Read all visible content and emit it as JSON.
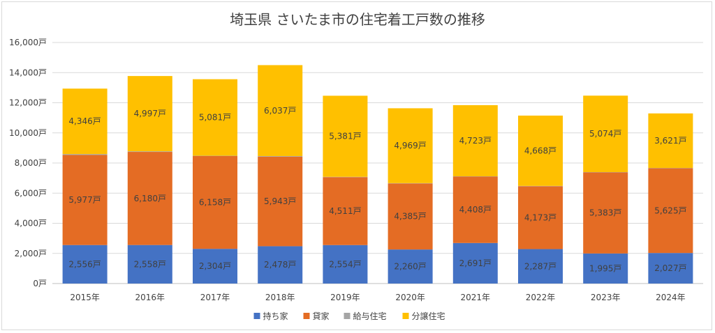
{
  "chart_data": {
    "type": "bar",
    "stacked": true,
    "title": "埼玉県 さいたま市の住宅着工戸数の推移",
    "unit_suffix": "戸",
    "categories": [
      "2015年",
      "2016年",
      "2017年",
      "2018年",
      "2019年",
      "2020年",
      "2021年",
      "2022年",
      "2023年",
      "2024年"
    ],
    "ylim": [
      0,
      16000
    ],
    "yticks": [
      "0戸",
      "2,000戸",
      "4,000戸",
      "6,000戸",
      "8,000戸",
      "10,000戸",
      "12,000戸",
      "14,000戸",
      "16,000戸"
    ],
    "ytick_values": [
      0,
      2000,
      4000,
      6000,
      8000,
      10000,
      12000,
      14000,
      16000
    ],
    "grid": true,
    "legend_position": "bottom",
    "series": [
      {
        "name": "持ち家",
        "color": "#4472c4",
        "values": [
          2556,
          2558,
          2304,
          2478,
          2554,
          2260,
          2691,
          2287,
          1995,
          2027
        ],
        "labels": [
          "2,556戸",
          "2,558戸",
          "2,304戸",
          "2,478戸",
          "2,554戸",
          "2,260戸",
          "2,691戸",
          "2,287戸",
          "1,995戸",
          "2,027戸"
        ]
      },
      {
        "name": "貸家",
        "color": "#e46c24",
        "values": [
          5977,
          6180,
          6158,
          5943,
          4511,
          4385,
          4408,
          4173,
          5383,
          5625
        ],
        "labels": [
          "5,977戸",
          "6,180戸",
          "6,158戸",
          "5,943戸",
          "4,511戸",
          "4,385戸",
          "4,408戸",
          "4,173戸",
          "5,383戸",
          "5,625戸"
        ]
      },
      {
        "name": "給与住宅",
        "color": "#a5a5a5",
        "values": [
          60,
          40,
          20,
          40,
          20,
          20,
          20,
          20,
          20,
          20
        ],
        "labels": []
      },
      {
        "name": "分譲住宅",
        "color": "#ffc000",
        "values": [
          4346,
          4997,
          5081,
          6037,
          5381,
          4969,
          4723,
          4668,
          5074,
          3621
        ],
        "labels": [
          "4,346戸",
          "4,997戸",
          "5,081戸",
          "6,037戸",
          "5,381戸",
          "4,969戸",
          "4,723戸",
          "4,668戸",
          "5,074戸",
          "3,621戸"
        ]
      }
    ]
  }
}
